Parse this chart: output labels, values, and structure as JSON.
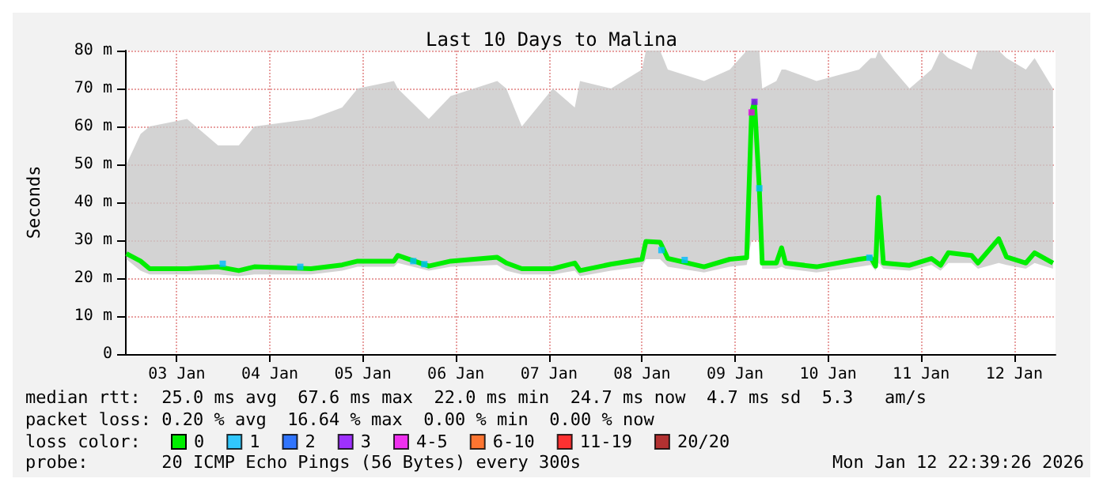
{
  "chart_data": {
    "type": "line",
    "title": "Last 10 Days to Malina",
    "ylabel": "Seconds",
    "legend_title": "loss color:",
    "legend": "bottom",
    "grid": true,
    "marker": "none",
    "xlim": [
      "2026-01-02T22:39",
      "2026-01-12T22:39"
    ],
    "xticks": [
      {
        "value": "2026-01-03T12:00",
        "label": "03 Jan"
      },
      {
        "value": "2026-01-04T12:00",
        "label": "04 Jan"
      },
      {
        "value": "2026-01-05T12:00",
        "label": "05 Jan"
      },
      {
        "value": "2026-01-06T12:00",
        "label": "06 Jan"
      },
      {
        "value": "2026-01-07T12:00",
        "label": "07 Jan"
      },
      {
        "value": "2026-01-08T12:00",
        "label": "08 Jan"
      },
      {
        "value": "2026-01-09T12:00",
        "label": "09 Jan"
      },
      {
        "value": "2026-01-10T12:00",
        "label": "10 Jan"
      },
      {
        "value": "2026-01-11T12:00",
        "label": "11 Jan"
      },
      {
        "value": "2026-01-12T12:00",
        "label": "12 Jan"
      }
    ],
    "ylim": [
      0,
      80
    ],
    "yticks": [
      0,
      {
        "value": 10,
        "label": "10 m"
      },
      {
        "value": 20,
        "label": "20 m"
      },
      {
        "value": 30,
        "label": "30 m"
      },
      {
        "value": 40,
        "label": "40 m"
      },
      {
        "value": 50,
        "label": "50 m"
      },
      {
        "value": 60,
        "label": "60 m"
      },
      {
        "value": 70,
        "label": "70 m"
      },
      {
        "value": 80,
        "label": "80 m"
      }
    ],
    "series": [
      {
        "name": "0",
        "color": "#00ee00",
        "x": [
          "2026-01-02T23:00",
          "2026-01-03T02:40",
          "2026-01-03T05:00",
          "2026-01-03T14:39",
          "2026-01-03T22:39",
          "2026-01-04T04:00",
          "2026-01-04T08:00",
          "2026-01-04T22:39",
          "2026-01-05T06:39",
          "2026-01-05T10:39",
          "2026-01-05T20:00",
          "2026-01-05T21:00",
          "2026-01-06T05:00",
          "2026-01-06T10:39",
          "2026-01-06T22:39",
          "2026-01-07T01:00",
          "2026-01-07T05:00",
          "2026-01-07T13:00",
          "2026-01-07T18:39",
          "2026-01-07T20:00",
          "2026-01-08T04:00",
          "2026-01-08T12:00",
          "2026-01-08T13:00",
          "2026-01-08T16:39",
          "2026-01-08T18:39",
          "2026-01-09T04:00",
          "2026-01-09T10:39",
          "2026-01-09T15:00",
          "2026-01-09T16:15",
          "2026-01-09T17:00",
          "2026-01-09T18:15",
          "2026-01-09T19:00",
          "2026-01-09T22:39",
          "2026-01-10T00:00",
          "2026-01-10T01:00",
          "2026-01-10T09:00",
          "2026-01-10T20:00",
          "2026-01-10T23:00",
          "2026-01-11T00:15",
          "2026-01-11T01:00",
          "2026-01-11T02:15",
          "2026-01-11T09:00",
          "2026-01-11T14:39",
          "2026-01-11T17:00",
          "2026-01-11T19:00",
          "2026-01-12T01:00",
          "2026-01-12T02:39",
          "2026-01-12T08:00",
          "2026-01-12T10:00",
          "2026-01-12T15:00",
          "2026-01-12T17:15",
          "2026-01-12T22:00"
        ],
        "values": [
          26.5,
          24.5,
          22.5,
          22.5,
          23,
          22,
          23,
          22.5,
          23.5,
          24.5,
          24.5,
          26,
          23.2,
          24.5,
          25.5,
          24,
          22.5,
          22.5,
          24,
          22,
          23.7,
          25,
          29.7,
          29.5,
          25.2,
          23,
          25,
          25.4,
          63.7,
          66.5,
          43.7,
          24,
          24,
          28,
          24,
          23,
          25,
          25.4,
          23.2,
          41.3,
          24,
          23.4,
          25.2,
          23.4,
          26.7,
          26,
          24,
          30.4,
          25.6,
          24,
          26.7,
          24
        ],
        "lower": [
          25,
          22,
          21,
          21,
          21,
          20.5,
          21,
          21,
          22,
          23,
          23,
          24,
          22,
          23,
          23.5,
          22,
          21,
          21,
          22,
          20.5,
          22,
          23,
          25,
          25,
          23,
          21.5,
          23,
          23.5,
          30,
          30,
          30,
          22.5,
          22.5,
          23,
          22.5,
          21.5,
          23,
          23.5,
          22,
          24,
          22.5,
          22,
          23.5,
          22,
          24,
          24,
          22.5,
          24,
          23.5,
          22.5,
          24,
          22.5
        ],
        "upper": [
          50,
          58,
          60,
          62,
          55,
          55,
          60,
          62,
          65,
          70,
          72,
          70,
          62,
          68,
          72,
          70,
          60,
          70,
          65,
          72,
          70,
          75,
          80,
          80,
          75,
          72,
          75,
          80,
          80,
          80,
          80,
          70,
          72,
          75,
          75,
          72,
          75,
          78,
          78,
          80,
          78,
          70,
          75,
          80,
          78,
          75,
          80,
          80,
          78,
          75,
          78,
          70
        ]
      },
      {
        "name": "1",
        "color": "#00bbff",
        "type": "scatter",
        "marker": "square",
        "x": [
          "2026-01-03T23:51",
          "2026-01-04T19:51",
          "2026-01-06T01:00",
          "2026-01-06T03:51",
          "2026-01-08T17:00",
          "2026-01-08T23:00",
          "2026-01-09T18:15",
          "2026-01-10T22:39"
        ],
        "values": [
          23.8,
          23,
          24.5,
          23.7,
          27.4,
          24.8,
          43.7,
          25.4
        ]
      },
      {
        "name": "2",
        "color": "#0055ff",
        "type": "scatter"
      },
      {
        "name": "3",
        "color": "#8800ff",
        "type": "scatter",
        "marker": "square",
        "x": [
          "2026-01-09T17:00"
        ],
        "values": [
          66.5
        ]
      },
      {
        "name": "4-5",
        "color": "#ee00ee",
        "type": "scatter",
        "marker": "square",
        "x": [
          "2026-01-09T16:15"
        ],
        "values": [
          63.7
        ]
      },
      {
        "name": "6-10",
        "color": "#ff5500",
        "type": "scatter"
      },
      {
        "name": "11-19",
        "color": "#ff0000",
        "type": "scatter"
      },
      {
        "name": "20/20",
        "color": "#a10000",
        "type": "scatter"
      }
    ],
    "annotations": [
      "median rtt:  25.0 ms avg  67.6 ms max  22.0 ms min  24.7 ms now  4.7 ms sd  5.3   am/s",
      "packet loss: 0.20 % avg  16.64 % max  0.00 % min  0.00 % now",
      "probe:       20 ICMP Echo Pings (56 Bytes) every 300s",
      "Mon Jan 12 22:39:26 2026"
    ]
  }
}
